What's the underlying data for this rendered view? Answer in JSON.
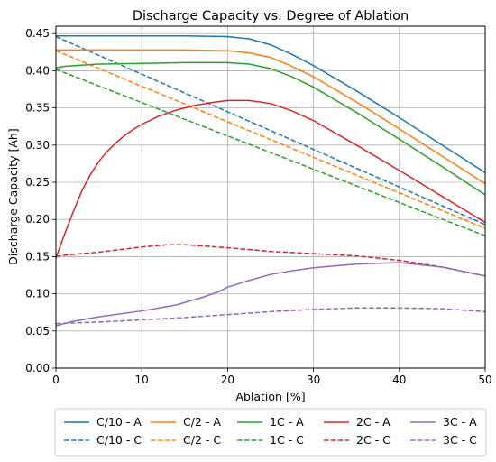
{
  "chart_data": {
    "type": "line",
    "title": "Discharge Capacity vs. Degree of Ablation",
    "xlabel": "Ablation [%]",
    "ylabel": "Discharge Capacity [Ah]",
    "xlim": [
      0,
      50
    ],
    "ylim": [
      0,
      0.46
    ],
    "xticks": [
      0,
      10,
      20,
      30,
      40,
      50
    ],
    "yticks": [
      0.0,
      0.05,
      0.1,
      0.15,
      0.2,
      0.25,
      0.3,
      0.35,
      0.4,
      0.45
    ],
    "xtick_labels": [
      "0",
      "10",
      "20",
      "30",
      "40",
      "50"
    ],
    "ytick_labels": [
      "0.00",
      "0.05",
      "0.10",
      "0.15",
      "0.20",
      "0.25",
      "0.30",
      "0.35",
      "0.40",
      "0.45"
    ],
    "grid": true,
    "legend_position": "bottom",
    "series": [
      {
        "name": "C/10 - A",
        "color": "#1f77b4",
        "style": "solid",
        "x": [
          0,
          5,
          10,
          15,
          20,
          22.5,
          25,
          27.5,
          30,
          35,
          40,
          45,
          50
        ],
        "y": [
          0.447,
          0.447,
          0.447,
          0.447,
          0.446,
          0.443,
          0.435,
          0.422,
          0.407,
          0.373,
          0.337,
          0.3,
          0.263
        ]
      },
      {
        "name": "C/10 - C",
        "color": "#1f77b4",
        "style": "dashed",
        "x": [
          0,
          50
        ],
        "y": [
          0.446,
          0.193
        ]
      },
      {
        "name": "C/2 - A",
        "color": "#ff7f0e",
        "style": "solid",
        "x": [
          0,
          5,
          10,
          15,
          20,
          22.5,
          25,
          27.5,
          30,
          35,
          40,
          45,
          50
        ],
        "y": [
          0.428,
          0.428,
          0.428,
          0.428,
          0.427,
          0.424,
          0.418,
          0.406,
          0.392,
          0.358,
          0.322,
          0.285,
          0.248
        ]
      },
      {
        "name": "C/2 - C",
        "color": "#ff7f0e",
        "style": "dashed",
        "x": [
          0,
          50
        ],
        "y": [
          0.427,
          0.188
        ]
      },
      {
        "name": "1C - A",
        "color": "#2ca02c",
        "style": "solid",
        "x": [
          0,
          1,
          5,
          10,
          15,
          20,
          22.5,
          25,
          27.5,
          30,
          35,
          40,
          45,
          50
        ],
        "y": [
          0.404,
          0.406,
          0.409,
          0.41,
          0.411,
          0.411,
          0.409,
          0.403,
          0.392,
          0.378,
          0.344,
          0.308,
          0.271,
          0.233
        ]
      },
      {
        "name": "1C - C",
        "color": "#2ca02c",
        "style": "dashed",
        "x": [
          0,
          50
        ],
        "y": [
          0.402,
          0.178
        ]
      },
      {
        "name": "2C - A",
        "color": "#d62728",
        "style": "solid",
        "x": [
          0,
          1,
          2,
          3,
          4,
          5,
          6,
          7,
          8,
          9,
          10,
          12,
          14,
          16,
          18,
          20,
          22.5,
          25,
          27.5,
          30,
          35,
          40,
          45,
          50
        ],
        "y": [
          0.148,
          0.18,
          0.21,
          0.238,
          0.26,
          0.278,
          0.292,
          0.303,
          0.313,
          0.321,
          0.328,
          0.339,
          0.347,
          0.353,
          0.357,
          0.36,
          0.36,
          0.356,
          0.346,
          0.333,
          0.3,
          0.266,
          0.231,
          0.196
        ]
      },
      {
        "name": "2C - C",
        "color": "#d62728",
        "style": "dashed",
        "x": [
          0,
          1,
          5,
          10,
          13,
          15,
          20,
          25,
          30,
          35,
          40,
          45,
          50
        ],
        "y": [
          0.15,
          0.152,
          0.156,
          0.163,
          0.166,
          0.166,
          0.162,
          0.157,
          0.154,
          0.151,
          0.145,
          0.136,
          0.124
        ]
      },
      {
        "name": "3C - A",
        "color": "#9467bd",
        "style": "solid",
        "x": [
          0,
          2,
          5,
          10,
          14,
          17,
          19,
          20,
          22.5,
          25,
          27.5,
          30,
          35,
          40,
          45,
          50
        ],
        "y": [
          0.057,
          0.063,
          0.069,
          0.077,
          0.085,
          0.095,
          0.103,
          0.109,
          0.118,
          0.126,
          0.131,
          0.135,
          0.14,
          0.142,
          0.136,
          0.124
        ]
      },
      {
        "name": "3C - C",
        "color": "#9467bd",
        "style": "dashed",
        "x": [
          0,
          5,
          10,
          15,
          20,
          25,
          30,
          35,
          40,
          45,
          50
        ],
        "y": [
          0.06,
          0.062,
          0.065,
          0.068,
          0.072,
          0.076,
          0.079,
          0.081,
          0.081,
          0.08,
          0.076
        ]
      }
    ]
  }
}
